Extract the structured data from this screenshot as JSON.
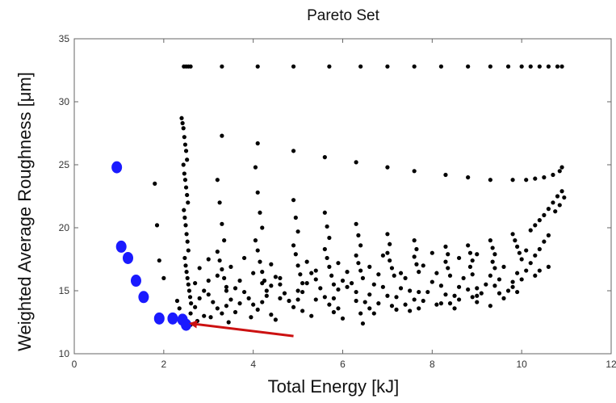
{
  "chart_data": {
    "type": "scatter",
    "title": "Pareto Set",
    "xlabel": "Total Energy [kJ]",
    "ylabel": "Weighted Average Roughness [μm]",
    "xlim": [
      0,
      12
    ],
    "ylim": [
      10,
      35
    ],
    "xticks": [
      0,
      2,
      4,
      6,
      8,
      10,
      12
    ],
    "yticks": [
      10,
      15,
      20,
      25,
      30,
      35
    ],
    "grid": false,
    "colors": {
      "dominated": "#000000",
      "pareto": "#1a1aff",
      "arrow": "#cc1111"
    },
    "series": [
      {
        "role": "dominated",
        "points": [
          [
            2.45,
            32.8
          ],
          [
            2.5,
            32.8
          ],
          [
            2.55,
            32.8
          ],
          [
            2.6,
            32.8
          ],
          [
            3.3,
            32.8
          ],
          [
            4.1,
            32.8
          ],
          [
            4.9,
            32.8
          ],
          [
            5.7,
            32.8
          ],
          [
            6.4,
            32.8
          ],
          [
            7.0,
            32.8
          ],
          [
            7.6,
            32.8
          ],
          [
            8.2,
            32.8
          ],
          [
            8.8,
            32.8
          ],
          [
            9.3,
            32.8
          ],
          [
            9.7,
            32.8
          ],
          [
            10.0,
            32.8
          ],
          [
            10.2,
            32.8
          ],
          [
            10.4,
            32.8
          ],
          [
            10.6,
            32.8
          ],
          [
            10.8,
            32.8
          ],
          [
            10.9,
            32.8
          ],
          [
            3.3,
            27.3
          ],
          [
            4.1,
            26.7
          ],
          [
            4.9,
            26.1
          ],
          [
            5.6,
            25.6
          ],
          [
            6.3,
            25.2
          ],
          [
            7.0,
            24.8
          ],
          [
            7.6,
            24.5
          ],
          [
            8.3,
            24.2
          ],
          [
            8.8,
            24.0
          ],
          [
            9.3,
            23.8
          ],
          [
            9.8,
            23.8
          ],
          [
            10.1,
            23.8
          ],
          [
            10.3,
            23.9
          ],
          [
            10.5,
            24.0
          ],
          [
            10.7,
            24.2
          ],
          [
            10.85,
            24.5
          ],
          [
            10.9,
            24.8
          ],
          [
            2.4,
            28.7
          ],
          [
            2.42,
            28.3
          ],
          [
            2.44,
            27.9
          ],
          [
            2.46,
            27.2
          ],
          [
            2.48,
            26.6
          ],
          [
            2.5,
            26.1
          ],
          [
            2.52,
            25.4
          ],
          [
            2.44,
            25.0
          ],
          [
            2.46,
            24.3
          ],
          [
            2.48,
            23.8
          ],
          [
            2.5,
            23.2
          ],
          [
            2.52,
            22.6
          ],
          [
            2.54,
            22.0
          ],
          [
            2.45,
            21.4
          ],
          [
            2.47,
            20.8
          ],
          [
            2.49,
            20.2
          ],
          [
            2.51,
            19.5
          ],
          [
            2.53,
            18.9
          ],
          [
            2.55,
            18.2
          ],
          [
            2.47,
            17.6
          ],
          [
            2.49,
            17.0
          ],
          [
            2.51,
            16.5
          ],
          [
            2.53,
            16.0
          ],
          [
            2.55,
            15.5
          ],
          [
            2.57,
            15.0
          ],
          [
            2.59,
            14.5
          ],
          [
            2.61,
            14.0
          ],
          [
            1.8,
            23.5
          ],
          [
            1.85,
            20.2
          ],
          [
            1.9,
            17.4
          ],
          [
            2.0,
            16.0
          ],
          [
            3.2,
            23.8
          ],
          [
            3.25,
            22.0
          ],
          [
            3.3,
            20.3
          ],
          [
            3.35,
            19.0
          ],
          [
            3.2,
            18.1
          ],
          [
            3.25,
            17.4
          ],
          [
            3.3,
            16.7
          ],
          [
            3.35,
            16.0
          ],
          [
            3.4,
            15.3
          ],
          [
            4.05,
            24.8
          ],
          [
            4.1,
            22.8
          ],
          [
            4.15,
            21.2
          ],
          [
            4.2,
            20.0
          ],
          [
            4.05,
            19.0
          ],
          [
            4.1,
            18.2
          ],
          [
            4.15,
            17.3
          ],
          [
            4.2,
            16.5
          ],
          [
            4.25,
            15.8
          ],
          [
            4.3,
            15.0
          ],
          [
            4.9,
            22.2
          ],
          [
            4.95,
            20.8
          ],
          [
            5.0,
            19.7
          ],
          [
            4.9,
            18.6
          ],
          [
            4.95,
            17.9
          ],
          [
            5.0,
            17.0
          ],
          [
            5.05,
            16.3
          ],
          [
            5.1,
            15.6
          ],
          [
            5.6,
            21.2
          ],
          [
            5.65,
            20.1
          ],
          [
            5.7,
            19.2
          ],
          [
            5.6,
            18.3
          ],
          [
            5.65,
            17.6
          ],
          [
            5.7,
            16.9
          ],
          [
            5.75,
            16.2
          ],
          [
            5.8,
            15.5
          ],
          [
            6.3,
            20.3
          ],
          [
            6.35,
            19.4
          ],
          [
            6.4,
            18.6
          ],
          [
            6.3,
            17.8
          ],
          [
            6.35,
            17.2
          ],
          [
            6.4,
            16.6
          ],
          [
            6.45,
            16.0
          ],
          [
            7.0,
            19.5
          ],
          [
            7.05,
            18.7
          ],
          [
            7.0,
            18.0
          ],
          [
            7.05,
            17.4
          ],
          [
            7.1,
            16.8
          ],
          [
            7.15,
            16.2
          ],
          [
            7.6,
            19.0
          ],
          [
            7.65,
            18.3
          ],
          [
            7.6,
            17.7
          ],
          [
            7.65,
            17.1
          ],
          [
            7.7,
            16.5
          ],
          [
            8.3,
            18.5
          ],
          [
            8.35,
            17.9
          ],
          [
            8.3,
            17.3
          ],
          [
            8.35,
            16.8
          ],
          [
            8.4,
            16.2
          ],
          [
            8.8,
            18.6
          ],
          [
            8.85,
            18.0
          ],
          [
            8.9,
            17.4
          ],
          [
            8.85,
            16.9
          ],
          [
            8.9,
            16.3
          ],
          [
            9.3,
            19.0
          ],
          [
            9.35,
            18.4
          ],
          [
            9.4,
            17.9
          ],
          [
            9.35,
            17.3
          ],
          [
            9.4,
            16.8
          ],
          [
            9.8,
            19.5
          ],
          [
            9.85,
            19.0
          ],
          [
            9.9,
            18.5
          ],
          [
            9.95,
            18.0
          ],
          [
            10.0,
            17.5
          ],
          [
            10.2,
            19.8
          ],
          [
            10.3,
            20.2
          ],
          [
            10.4,
            20.6
          ],
          [
            10.5,
            21.0
          ],
          [
            10.6,
            21.5
          ],
          [
            10.7,
            22.0
          ],
          [
            10.8,
            22.5
          ],
          [
            10.9,
            22.9
          ],
          [
            10.75,
            21.3
          ],
          [
            10.85,
            21.8
          ],
          [
            10.95,
            22.4
          ],
          [
            2.3,
            14.2
          ],
          [
            2.35,
            13.6
          ],
          [
            2.4,
            13.0
          ],
          [
            2.45,
            12.6
          ],
          [
            2.6,
            13.2
          ],
          [
            2.7,
            13.7
          ],
          [
            2.8,
            14.4
          ],
          [
            2.9,
            15.0
          ],
          [
            3.0,
            14.7
          ],
          [
            3.1,
            14.1
          ],
          [
            3.2,
            13.6
          ],
          [
            3.3,
            13.2
          ],
          [
            3.4,
            13.8
          ],
          [
            3.5,
            14.3
          ],
          [
            3.6,
            15.2
          ],
          [
            3.7,
            15.8
          ],
          [
            3.8,
            14.9
          ],
          [
            3.9,
            14.4
          ],
          [
            4.0,
            13.9
          ],
          [
            4.1,
            13.5
          ],
          [
            4.2,
            14.1
          ],
          [
            4.3,
            14.6
          ],
          [
            4.4,
            15.4
          ],
          [
            4.5,
            16.1
          ],
          [
            4.6,
            15.5
          ],
          [
            4.7,
            14.8
          ],
          [
            4.8,
            14.2
          ],
          [
            4.9,
            13.7
          ],
          [
            5.0,
            14.3
          ],
          [
            5.1,
            14.9
          ],
          [
            5.2,
            15.6
          ],
          [
            5.3,
            16.4
          ],
          [
            5.4,
            15.9
          ],
          [
            5.5,
            15.2
          ],
          [
            5.6,
            14.5
          ],
          [
            5.7,
            13.9
          ],
          [
            5.8,
            14.4
          ],
          [
            5.9,
            15.1
          ],
          [
            6.0,
            15.8
          ],
          [
            6.1,
            16.5
          ],
          [
            6.2,
            15.6
          ],
          [
            6.3,
            14.9
          ],
          [
            6.4,
            13.2
          ],
          [
            6.45,
            12.4
          ],
          [
            6.5,
            14.1
          ],
          [
            6.6,
            14.7
          ],
          [
            6.7,
            15.5
          ],
          [
            6.8,
            16.3
          ],
          [
            6.9,
            15.3
          ],
          [
            7.0,
            14.6
          ],
          [
            7.1,
            13.8
          ],
          [
            7.2,
            14.5
          ],
          [
            7.3,
            15.2
          ],
          [
            7.4,
            16.0
          ],
          [
            7.5,
            15.0
          ],
          [
            7.6,
            14.3
          ],
          [
            7.7,
            13.6
          ],
          [
            7.8,
            14.2
          ],
          [
            7.9,
            14.9
          ],
          [
            8.0,
            15.7
          ],
          [
            8.1,
            16.4
          ],
          [
            8.2,
            15.4
          ],
          [
            8.3,
            14.7
          ],
          [
            8.4,
            14.0
          ],
          [
            8.5,
            14.6
          ],
          [
            8.6,
            15.3
          ],
          [
            8.7,
            16.0
          ],
          [
            8.8,
            15.1
          ],
          [
            8.9,
            14.5
          ],
          [
            9.0,
            14.1
          ],
          [
            9.1,
            14.8
          ],
          [
            9.2,
            15.5
          ],
          [
            9.3,
            16.2
          ],
          [
            9.4,
            15.4
          ],
          [
            9.5,
            14.8
          ],
          [
            9.6,
            14.4
          ],
          [
            9.7,
            15.0
          ],
          [
            9.8,
            15.7
          ],
          [
            9.9,
            16.4
          ],
          [
            10.0,
            15.9
          ],
          [
            10.1,
            16.6
          ],
          [
            10.2,
            17.2
          ],
          [
            10.3,
            17.8
          ],
          [
            10.4,
            18.3
          ],
          [
            10.5,
            18.9
          ],
          [
            10.6,
            19.4
          ],
          [
            2.8,
            16.8
          ],
          [
            3.0,
            17.5
          ],
          [
            3.2,
            16.2
          ],
          [
            3.5,
            16.9
          ],
          [
            3.8,
            17.6
          ],
          [
            4.0,
            16.4
          ],
          [
            4.4,
            17.1
          ],
          [
            4.6,
            16.0
          ],
          [
            5.2,
            17.3
          ],
          [
            5.4,
            16.6
          ],
          [
            5.9,
            17.2
          ],
          [
            6.1,
            15.3
          ],
          [
            6.6,
            16.9
          ],
          [
            6.9,
            17.8
          ],
          [
            7.3,
            16.4
          ],
          [
            7.8,
            17.0
          ],
          [
            8.0,
            18.0
          ],
          [
            8.6,
            17.6
          ],
          [
            9.0,
            17.9
          ],
          [
            9.6,
            16.9
          ],
          [
            10.1,
            18.2
          ],
          [
            2.7,
            15.6
          ],
          [
            3.0,
            15.8
          ],
          [
            3.4,
            15.0
          ],
          [
            3.7,
            14.0
          ],
          [
            4.2,
            15.6
          ],
          [
            4.6,
            14.4
          ],
          [
            5.0,
            15.0
          ],
          [
            5.4,
            14.3
          ],
          [
            5.9,
            13.6
          ],
          [
            6.3,
            14.2
          ],
          [
            6.8,
            14.0
          ],
          [
            7.2,
            13.5
          ],
          [
            7.7,
            14.9
          ],
          [
            8.1,
            13.9
          ],
          [
            8.6,
            14.3
          ],
          [
            9.0,
            15.2
          ],
          [
            9.5,
            15.9
          ],
          [
            9.9,
            14.9
          ],
          [
            10.3,
            16.2
          ],
          [
            10.6,
            16.9
          ],
          [
            2.9,
            13.0
          ],
          [
            3.6,
            13.3
          ],
          [
            4.4,
            13.1
          ],
          [
            5.1,
            13.4
          ],
          [
            5.8,
            13.3
          ],
          [
            6.6,
            13.6
          ],
          [
            7.4,
            13.9
          ],
          [
            8.2,
            14.0
          ],
          [
            9.0,
            14.6
          ],
          [
            9.8,
            15.3
          ],
          [
            10.4,
            16.6
          ],
          [
            2.6,
            12.3
          ],
          [
            2.75,
            12.6
          ],
          [
            3.05,
            12.9
          ],
          [
            3.45,
            12.5
          ],
          [
            3.95,
            12.9
          ],
          [
            4.5,
            12.7
          ],
          [
            5.3,
            13.0
          ],
          [
            6.0,
            12.8
          ],
          [
            6.7,
            13.2
          ],
          [
            7.5,
            13.4
          ],
          [
            8.5,
            13.6
          ],
          [
            9.3,
            13.8
          ]
        ]
      },
      {
        "role": "pareto",
        "points": [
          [
            0.95,
            24.8
          ],
          [
            1.05,
            18.5
          ],
          [
            1.2,
            17.6
          ],
          [
            1.38,
            15.8
          ],
          [
            1.55,
            14.5
          ],
          [
            1.9,
            12.8
          ],
          [
            2.2,
            12.8
          ],
          [
            2.42,
            12.7
          ],
          [
            2.5,
            12.3
          ]
        ]
      }
    ],
    "annotations": [
      {
        "type": "arrow",
        "from": [
          4.9,
          11.4
        ],
        "to": [
          2.6,
          12.4
        ]
      }
    ]
  }
}
